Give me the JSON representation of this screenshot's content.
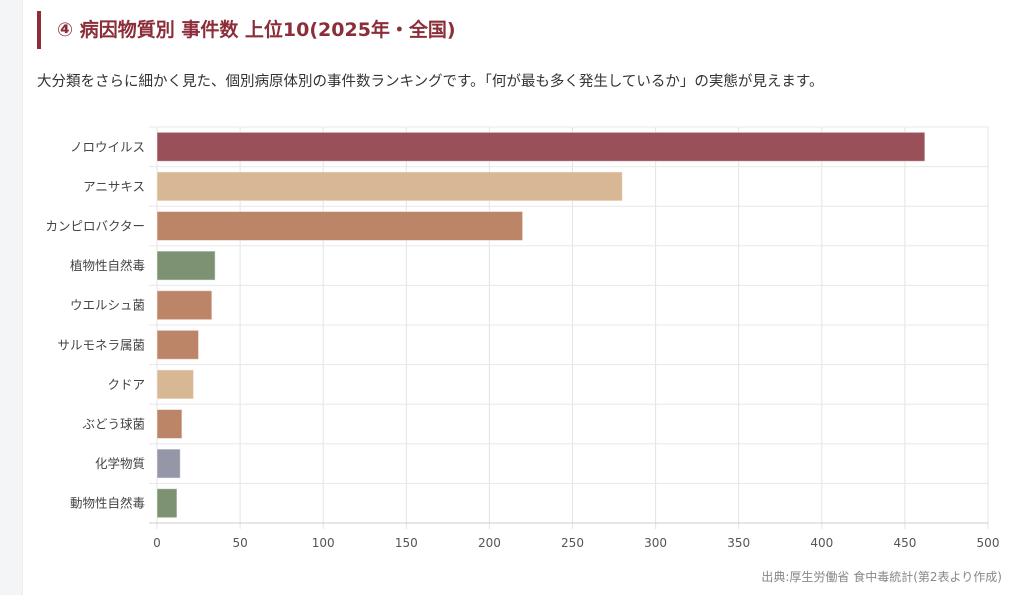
{
  "header": {
    "title": "④ 病因物質別 事件数 上位10(2025年・全国)",
    "description": "大分類をさらに細かく見た、個別病原体別の事件数ランキングです。「何が最も多く発生しているか」の実態が見えます。"
  },
  "source": "出典:厚生労働省 食中毒統計(第2表より作成)",
  "chart_data": {
    "type": "bar",
    "orientation": "horizontal",
    "title": "病因物質別 事件数 上位10(2025年・全国)",
    "categories": [
      "ノロウイルス",
      "アニサキス",
      "カンピロバクター",
      "植物性自然毒",
      "ウエルシュ菌",
      "サルモネラ属菌",
      "クドア",
      "ぶどう球菌",
      "化学物質",
      "動物性自然毒"
    ],
    "values": [
      462,
      280,
      220,
      35,
      33,
      25,
      22,
      15,
      14,
      12
    ],
    "colors": [
      "#9a5058",
      "#d8b894",
      "#bd8568",
      "#7d9273",
      "#bd8568",
      "#bd8568",
      "#d8b894",
      "#bd8568",
      "#9596a8",
      "#7d9273"
    ],
    "xlim": [
      0,
      500
    ],
    "xticks": [
      "0",
      "50",
      "100",
      "150",
      "200",
      "250",
      "300",
      "350",
      "400",
      "450",
      "500"
    ],
    "grid": true,
    "legend": "none"
  }
}
